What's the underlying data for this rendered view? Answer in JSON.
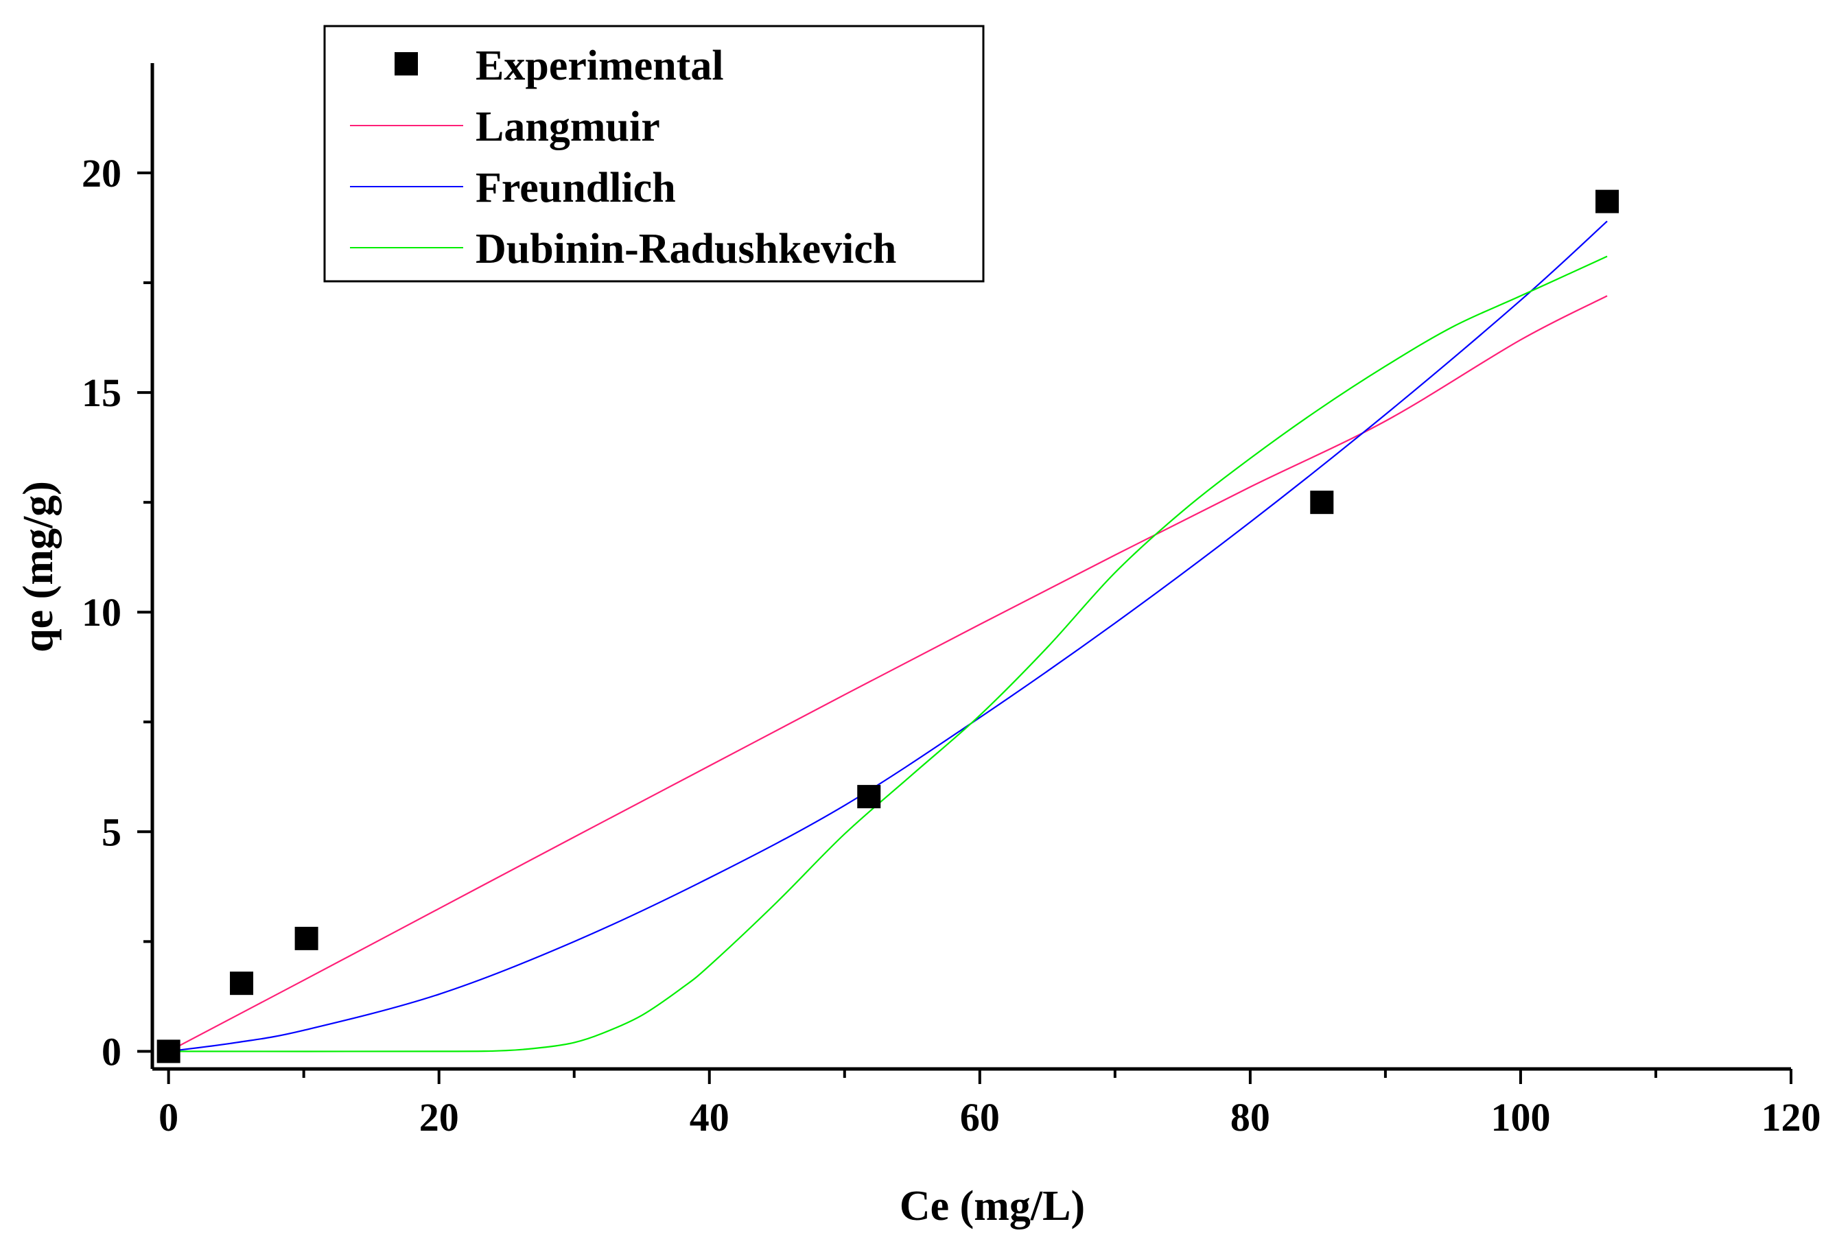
{
  "chart_data": {
    "type": "scatter",
    "title": "",
    "xlabel": "Ce (mg/L)",
    "ylabel": "qe (mg/g)",
    "xlim": [
      -1.2,
      120
    ],
    "ylim": [
      -0.4,
      22.5
    ],
    "xticks": [
      0,
      20,
      40,
      60,
      80,
      100,
      120
    ],
    "xtick_labels": [
      "0",
      "20",
      "40",
      "60",
      "80",
      "100",
      "120"
    ],
    "yticks": [
      0,
      5,
      10,
      15,
      20
    ],
    "ytick_labels": [
      "0",
      "5",
      "10",
      "15",
      "20"
    ],
    "grid": false,
    "legend_position": "top-left",
    "series": [
      {
        "name": "Experimental",
        "kind": "markers",
        "marker": "square",
        "color": "#000000",
        "x": [
          0,
          5.4,
          10.2,
          51.8,
          85.3,
          106.4
        ],
        "y": [
          0,
          1.55,
          2.57,
          5.8,
          12.5,
          19.35
        ]
      },
      {
        "name": "Langmuir",
        "kind": "line",
        "color": "#ff1f77",
        "x": [
          0,
          10,
          20,
          30,
          40,
          50,
          60,
          70,
          80,
          90,
          100,
          106.4
        ],
        "y": [
          0,
          1.62,
          3.25,
          4.88,
          6.5,
          8.12,
          9.72,
          11.3,
          12.85,
          14.35,
          16.2,
          17.2
        ]
      },
      {
        "name": "Freundlich",
        "kind": "line",
        "color": "#0000ff",
        "x": [
          0,
          5,
          10,
          20,
          30,
          40,
          50,
          60,
          70,
          80,
          90,
          100,
          106.4
        ],
        "y": [
          0,
          0.2,
          0.48,
          1.3,
          2.5,
          3.95,
          5.6,
          7.6,
          9.75,
          12.05,
          14.5,
          17.1,
          18.9
        ]
      },
      {
        "name": "Dubinin-Radushkevich",
        "kind": "line",
        "color": "#00ee00",
        "x": [
          0,
          20,
          25,
          28,
          30,
          32,
          35,
          38,
          40,
          45,
          50,
          55,
          60,
          65,
          70,
          75,
          80,
          85,
          90,
          95,
          100,
          106.4
        ],
        "y": [
          0,
          0,
          0.02,
          0.1,
          0.2,
          0.4,
          0.82,
          1.45,
          1.95,
          3.4,
          4.95,
          6.3,
          7.65,
          9.2,
          10.9,
          12.3,
          13.5,
          14.6,
          15.6,
          16.5,
          17.2,
          18.1
        ]
      }
    ]
  }
}
